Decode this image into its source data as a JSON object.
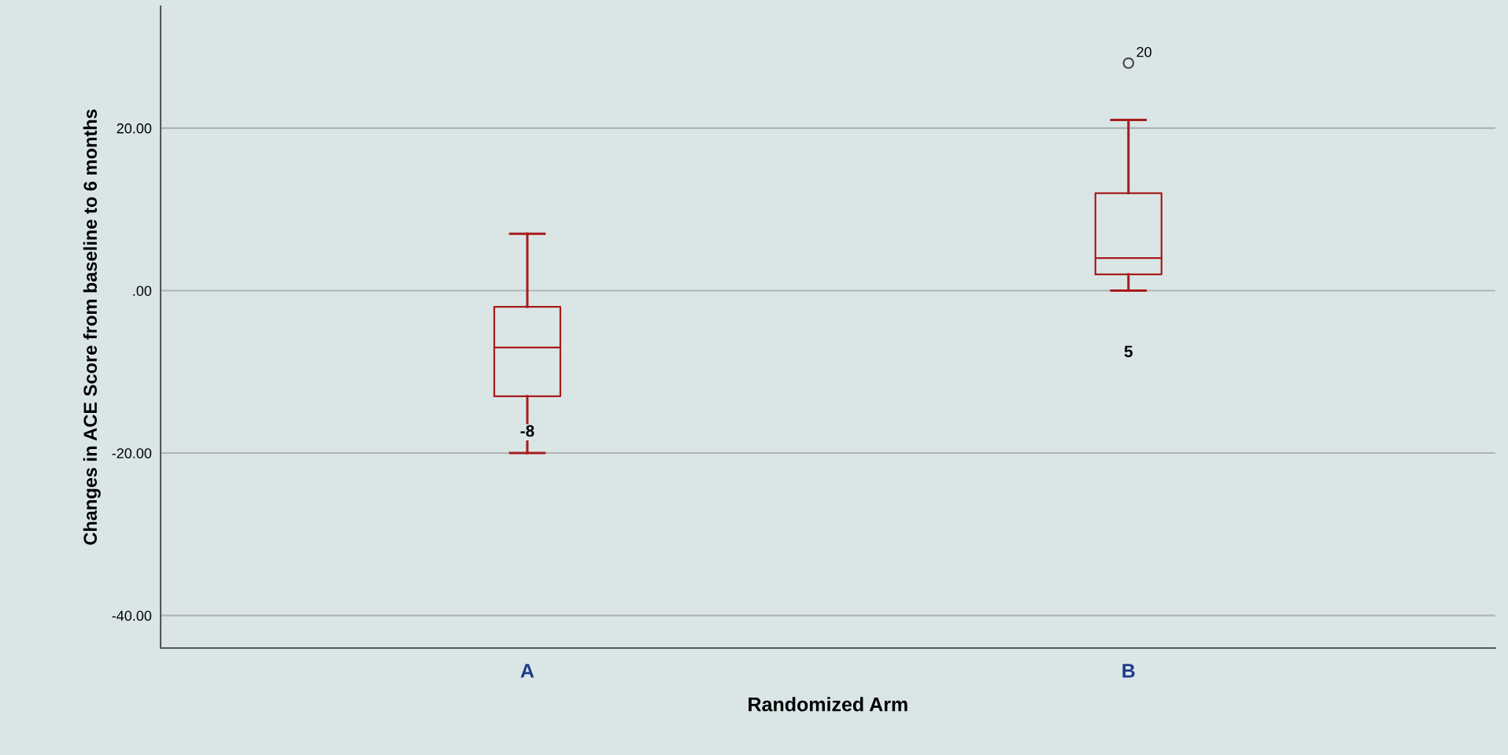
{
  "chart_data": {
    "type": "box",
    "xlabel": "Randomized Arm",
    "ylabel": "Changes in ACE Score from baseline to 6 months",
    "categories": [
      "A",
      "B"
    ],
    "boxes": [
      {
        "low": -20,
        "q1": -13,
        "median": -7,
        "q3": -2,
        "high": 7
      },
      {
        "low": 0,
        "q1": 2,
        "median": 4,
        "q3": 12,
        "high": 21,
        "outliers": [
          28
        ]
      }
    ],
    "color": "#a81c1c",
    "ylim": [
      -44,
      35
    ],
    "yticks": [
      {
        "value": -40,
        "label": "-40.00"
      },
      {
        "value": -20,
        "label": "-20.00"
      },
      {
        "value": 0,
        "label": ".00"
      },
      {
        "value": 20,
        "label": "20.00"
      }
    ],
    "grid": "y",
    "legend": false,
    "annotations": [
      {
        "text": "-8",
        "x": "A",
        "y": -20
      },
      "5",
      "20"
    ]
  }
}
